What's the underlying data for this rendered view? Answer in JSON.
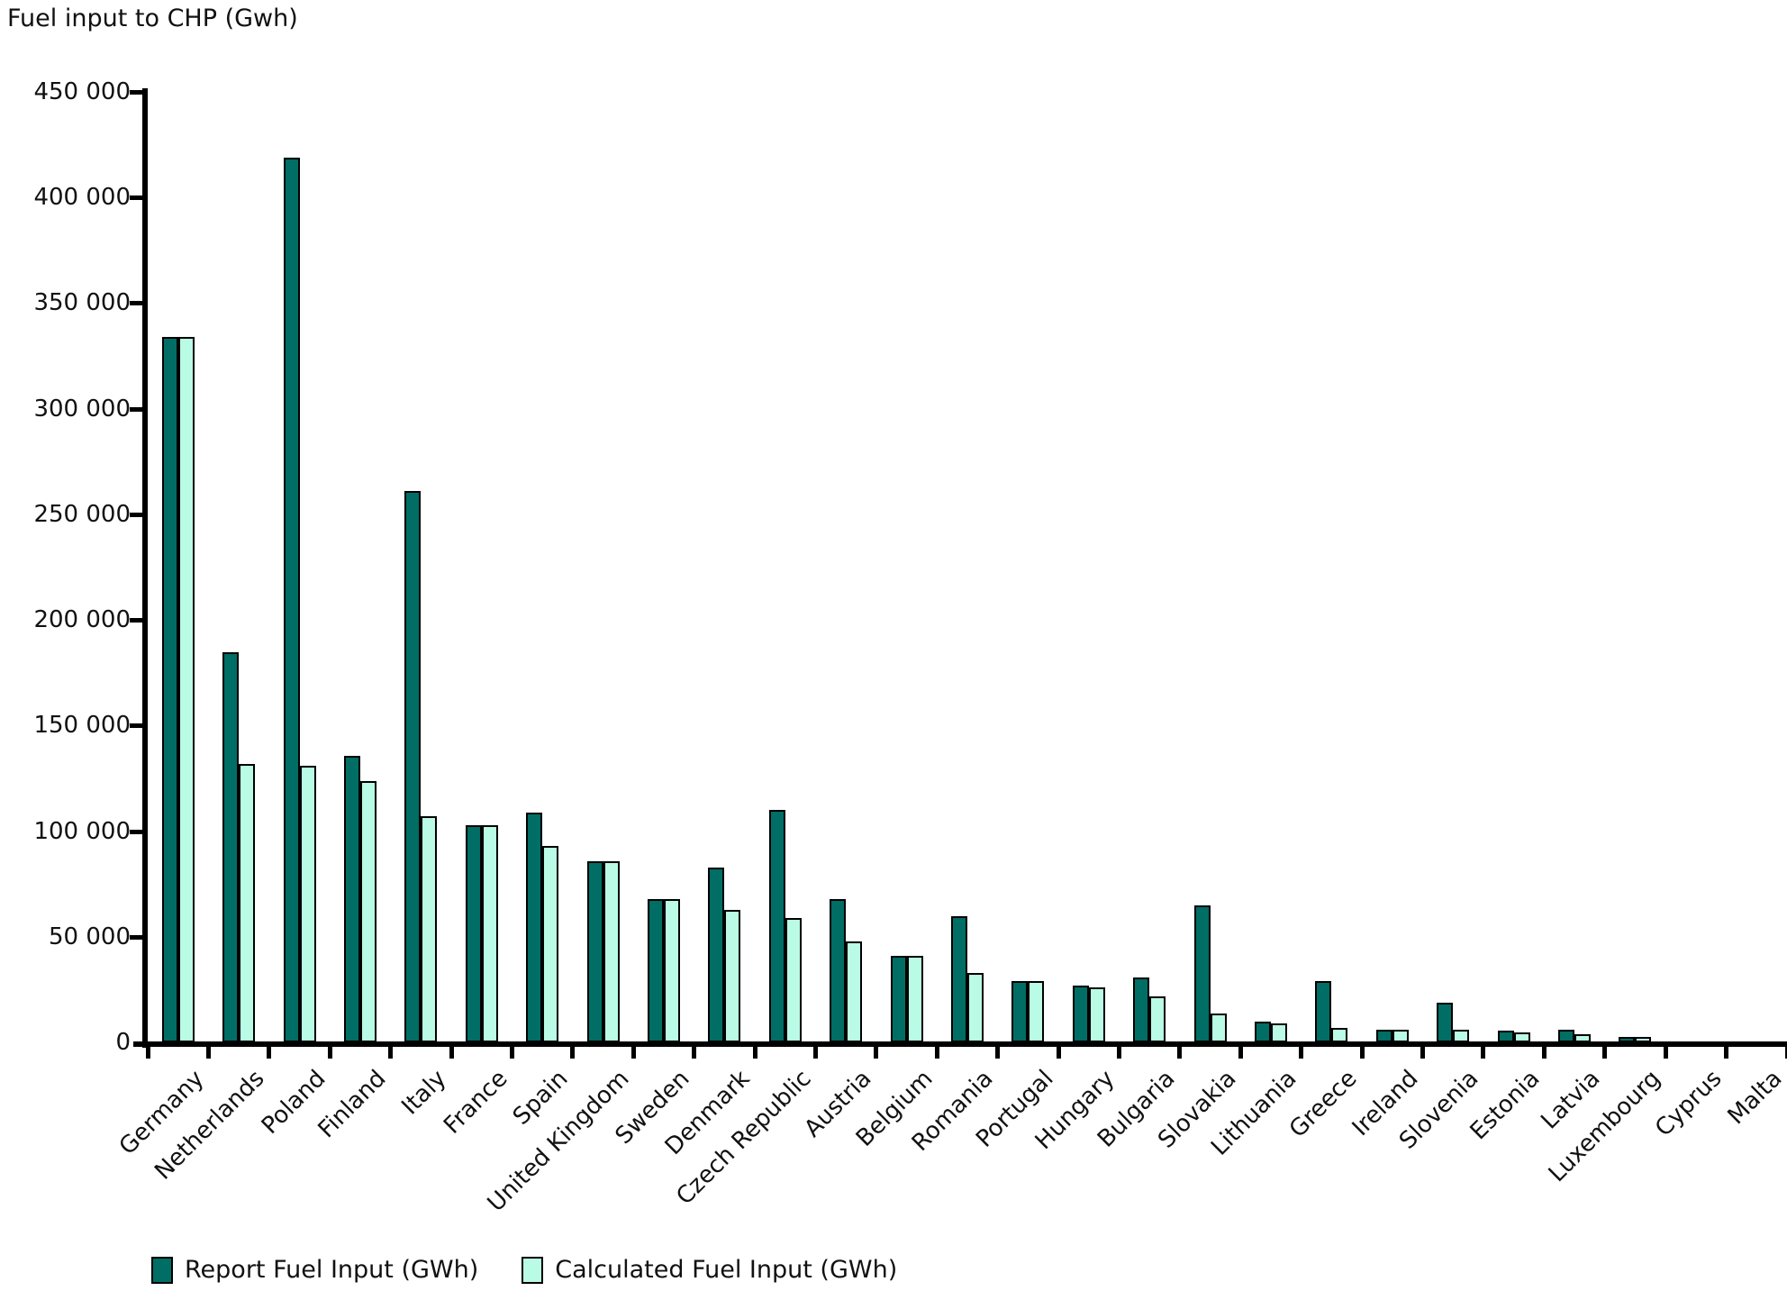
{
  "chart_data": {
    "type": "bar",
    "title": "Fuel input to CHP (Gwh)",
    "categories": [
      "Germany",
      "Netherlands",
      "Poland",
      "Finland",
      "Italy",
      "France",
      "Spain",
      "United Kingdom",
      "Sweden",
      "Denmark",
      "Czech Republic",
      "Austria",
      "Belgium",
      "Romania",
      "Portugal",
      "Hungary",
      "Bulgaria",
      "Slovakia",
      "Lithuania",
      "Greece",
      "Ireland",
      "Slovenia",
      "Estonia",
      "Latvia",
      "Luxembourg",
      "Cyprus",
      "Malta"
    ],
    "series": [
      {
        "name": "Report Fuel Input (GWh)",
        "color": "#006E64",
        "values": [
          333000,
          184000,
          418000,
          135000,
          260000,
          102000,
          108000,
          85000,
          67000,
          82000,
          109000,
          67000,
          40000,
          59000,
          28000,
          26000,
          30000,
          64000,
          9000,
          28000,
          5000,
          18000,
          4500,
          5000,
          1500,
          0,
          0
        ]
      },
      {
        "name": "Calculated Fuel Input (GWh)",
        "color": "#BAFBE6",
        "values": [
          333000,
          131000,
          130000,
          123000,
          106000,
          102000,
          92000,
          85000,
          67000,
          62000,
          58000,
          47000,
          40000,
          32000,
          28000,
          25000,
          21000,
          13000,
          8000,
          6000,
          5000,
          5000,
          4000,
          3000,
          1500,
          0,
          0
        ]
      }
    ],
    "y_axis": {
      "min": 0,
      "max": 450000,
      "step": 50000,
      "tick_labels": [
        "0",
        "50 000",
        "100 000",
        "150 000",
        "200 000",
        "250 000",
        "300 000",
        "350 000",
        "400 000",
        "450 000"
      ]
    },
    "xlabel": "",
    "ylabel": "",
    "grid": false,
    "legend_position": "bottom",
    "bar_border_color": "#000000"
  }
}
